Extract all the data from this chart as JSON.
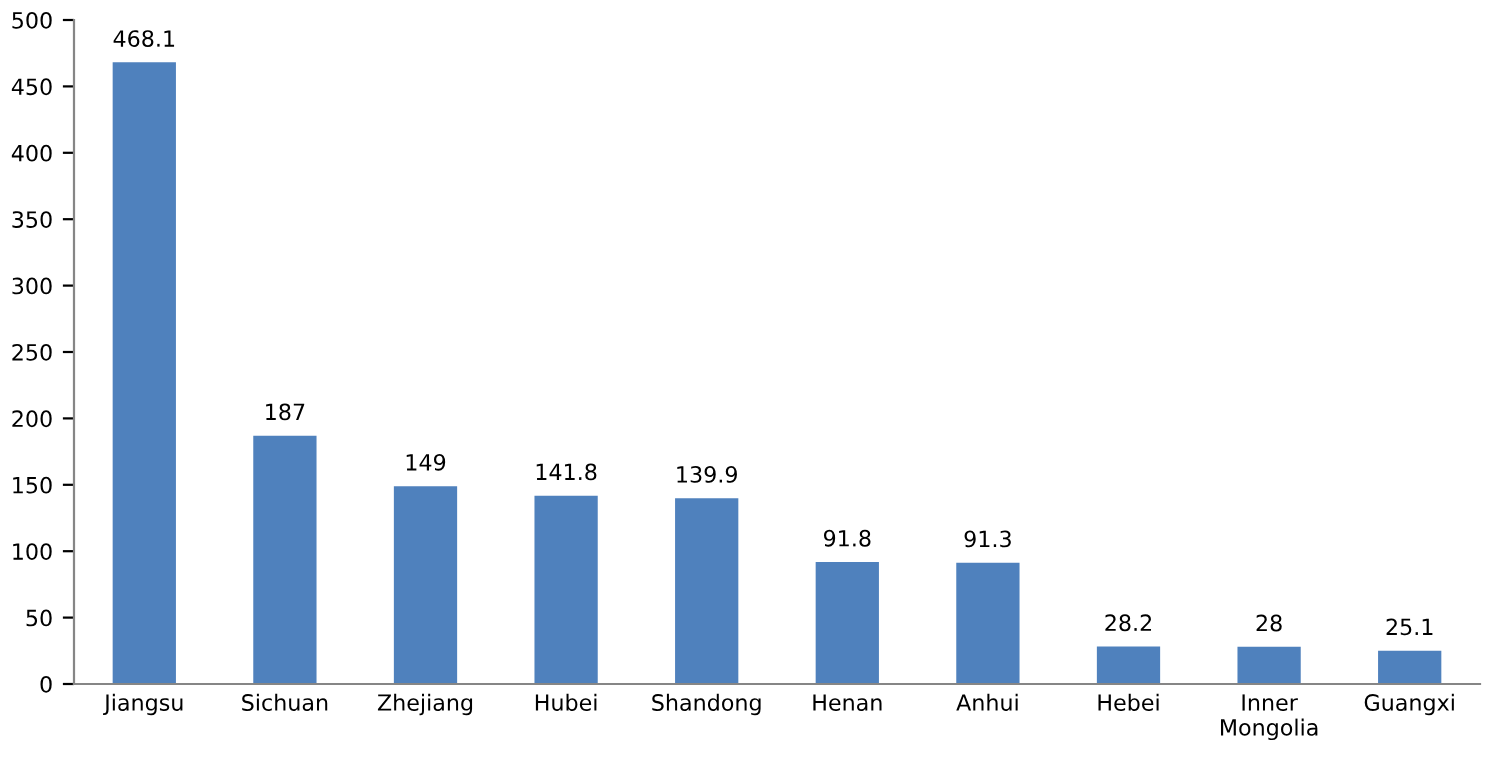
{
  "chart_data": {
    "type": "bar",
    "categories": [
      "Jiangsu",
      "Sichuan",
      "Zhejiang",
      "Hubei",
      "Shandong",
      "Henan",
      "Anhui",
      "Hebei",
      "Inner\nMongolia",
      "Guangxi"
    ],
    "values": [
      468.1,
      187,
      149,
      141.8,
      139.9,
      91.8,
      91.3,
      28.2,
      28,
      25.1
    ],
    "color": "#4f81bd",
    "ylim": [
      0,
      500
    ],
    "yticks": [
      0,
      50,
      100,
      150,
      200,
      250,
      300,
      350,
      400,
      450,
      500
    ],
    "data_labels": true,
    "grid": false,
    "legend": false
  }
}
